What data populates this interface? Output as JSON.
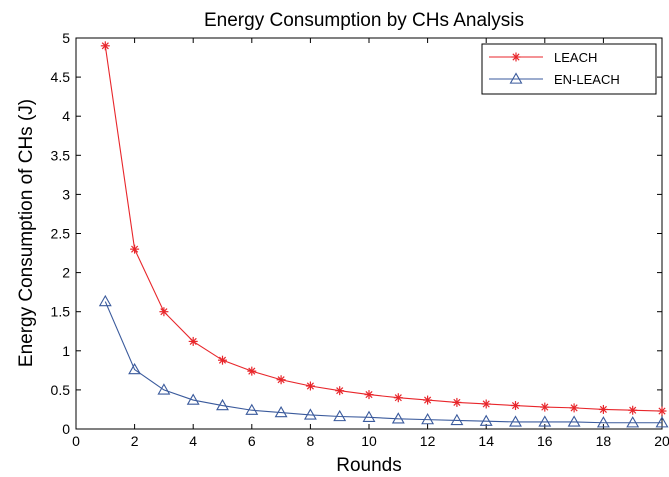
{
  "chart_data": {
    "type": "line",
    "title": "Energy Consumption by CHs Analysis",
    "xlabel": "Rounds",
    "ylabel": "Energy Consumption of CHs (J)",
    "xlim": [
      0,
      20
    ],
    "ylim": [
      0,
      5
    ],
    "xticks": [
      0,
      2,
      4,
      6,
      8,
      10,
      12,
      14,
      16,
      18,
      20
    ],
    "yticks": [
      0,
      0.5,
      1,
      1.5,
      2,
      2.5,
      3,
      3.5,
      4,
      4.5,
      5
    ],
    "xtick_labels": [
      "0",
      "2",
      "4",
      "6",
      "8",
      "10",
      "12",
      "14",
      "16",
      "18",
      "20"
    ],
    "ytick_labels": [
      "0",
      "0.5",
      "1",
      "1.5",
      "2",
      "2.5",
      "3",
      "3.5",
      "4",
      "4.5",
      "5"
    ],
    "grid": false,
    "legend_position": "top-right",
    "x": [
      1,
      2,
      3,
      4,
      5,
      6,
      7,
      8,
      9,
      10,
      11,
      12,
      13,
      14,
      15,
      16,
      17,
      18,
      19,
      20
    ],
    "series": [
      {
        "name": "LEACH",
        "color": "#e8262b",
        "marker": "asterisk",
        "values": [
          4.9,
          2.3,
          1.5,
          1.12,
          0.88,
          0.74,
          0.63,
          0.55,
          0.49,
          0.44,
          0.4,
          0.37,
          0.34,
          0.32,
          0.3,
          0.28,
          0.27,
          0.25,
          0.24,
          0.23
        ]
      },
      {
        "name": "EN-LEACH",
        "color": "#3a5a9c",
        "marker": "triangle",
        "values": [
          1.63,
          0.76,
          0.5,
          0.37,
          0.3,
          0.24,
          0.21,
          0.18,
          0.16,
          0.15,
          0.13,
          0.12,
          0.11,
          0.1,
          0.09,
          0.09,
          0.09,
          0.08,
          0.08,
          0.08
        ]
      }
    ]
  }
}
